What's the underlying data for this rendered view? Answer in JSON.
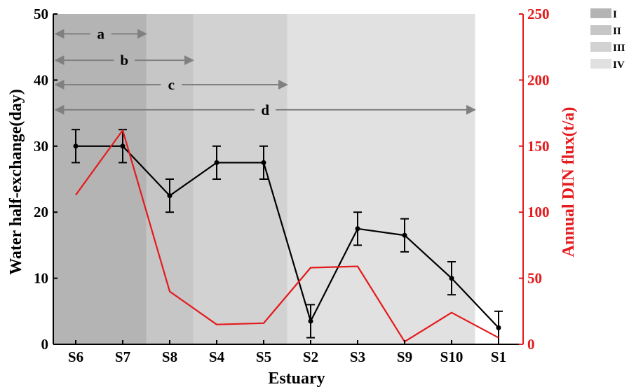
{
  "chart_data": {
    "type": "line",
    "categories": [
      "S6",
      "S7",
      "S8",
      "S4",
      "S5",
      "S2",
      "S3",
      "S9",
      "S10",
      "S1"
    ],
    "xlabel": "Estuary",
    "ylabel_left": "Water half-exchange(day)",
    "ylabel_right": "Annual DIN flux(t/a)",
    "ylim_left": [
      0,
      50
    ],
    "ylim_right": [
      0,
      250
    ],
    "yticks_left": [
      "0",
      "10",
      "20",
      "30",
      "40",
      "50"
    ],
    "yticks_right": [
      "0",
      "50",
      "100",
      "150",
      "200",
      "250"
    ],
    "grid": false,
    "series": [
      {
        "axis": "left",
        "color": "#000000",
        "marker": "circle",
        "values": [
          30,
          30,
          22.5,
          27.5,
          27.5,
          3.5,
          17.5,
          16.5,
          10,
          2.5
        ],
        "error": [
          2.5,
          2.5,
          2.5,
          2.5,
          2.5,
          2.5,
          2.5,
          2.5,
          2.5,
          2.5
        ]
      },
      {
        "axis": "right",
        "color": "#e41a1c",
        "values": [
          113,
          162,
          40,
          15,
          16,
          58,
          59,
          2,
          24,
          5
        ]
      }
    ],
    "zones": [
      {
        "label": "I",
        "from_category": "S6",
        "to_category": "S7",
        "color": "#b4b4b4"
      },
      {
        "label": "II",
        "from_category": "S8",
        "to_category": "S8",
        "color": "#c6c6c6"
      },
      {
        "label": "III",
        "from_category": "S4",
        "to_category": "S5",
        "color": "#d2d2d2"
      },
      {
        "label": "IV",
        "from_category": "S2",
        "to_category": "S10",
        "color": "#e1e1e1"
      }
    ],
    "arrows": [
      {
        "label": "a",
        "to_after_category": "S7",
        "y": 47
      },
      {
        "label": "b",
        "to_after_category": "S8",
        "y": 43
      },
      {
        "label": "c",
        "to_after_category": "S5",
        "y": 39.3
      },
      {
        "label": "d",
        "to_after_category": "S10",
        "y": 35.5
      }
    ],
    "legend": {
      "position": "top-right",
      "entries": [
        "I",
        "II",
        "III",
        "IV"
      ]
    }
  }
}
